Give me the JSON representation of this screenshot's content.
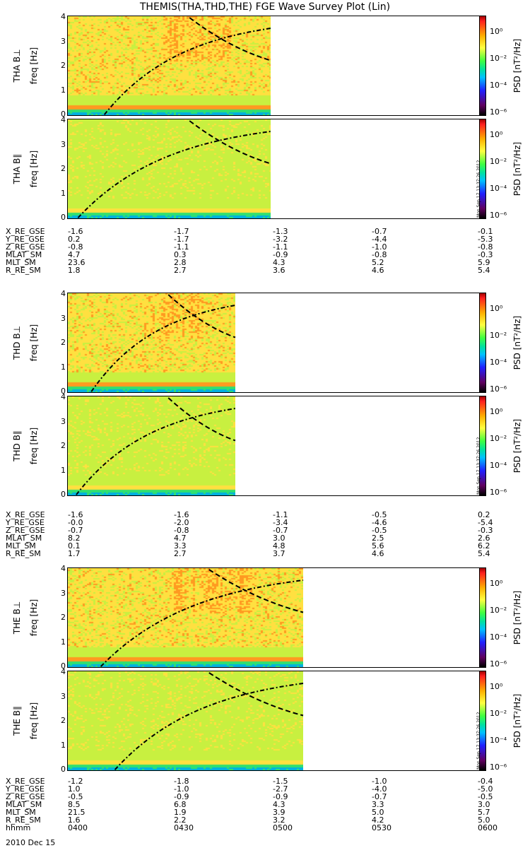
{
  "title": "THEMIS(THA,THD,THE) FGE Wave Survey Plot (Lin)",
  "freq_ticks": [
    "0",
    "1",
    "2",
    "3",
    "4"
  ],
  "colorbar": {
    "label": "PSD [nT²/Hz]",
    "ticks": [
      "10⁰",
      "10⁻²",
      "10⁻⁴",
      "10⁻⁶"
    ],
    "stamp": "Mon Sep 17 13:37:26 2012"
  },
  "probes": [
    {
      "name": "THA",
      "top_label": "THA B⊥",
      "bot_label": "THA B∥",
      "freq_label": "freq [Hz]",
      "data_end": 0.49,
      "ephemeris": [
        {
          "label": "X_RE_GSE",
          "values": [
            "-1.6",
            "-1.7",
            "-1.3",
            "-0.7",
            "-0.1"
          ]
        },
        {
          "label": "Y_RE_GSE",
          "values": [
            "0.2",
            "-1.7",
            "-3.2",
            "-4.4",
            "-5.3"
          ]
        },
        {
          "label": "Z_RE_GSE",
          "values": [
            "-0.8",
            "-1.1",
            "-1.1",
            "-1.0",
            "-0.8"
          ]
        },
        {
          "label": "MLAT_SM",
          "values": [
            "4.7",
            "0.3",
            "-0.9",
            "-0.8",
            "-0.3"
          ]
        },
        {
          "label": "MLT_SM",
          "values": [
            "23.6",
            "2.8",
            "4.3",
            "5.2",
            "5.9"
          ]
        },
        {
          "label": "R_RE_SM",
          "values": [
            "1.8",
            "2.7",
            "3.6",
            "4.6",
            "5.4"
          ]
        }
      ]
    },
    {
      "name": "THD",
      "top_label": "THD B⊥",
      "bot_label": "THD B∥",
      "freq_label": "freq [Hz]",
      "data_end": 0.405,
      "ephemeris": [
        {
          "label": "X_RE_GSE",
          "values": [
            "-1.6",
            "-1.6",
            "-1.1",
            "-0.5",
            "0.2"
          ]
        },
        {
          "label": "Y_RE_GSE",
          "values": [
            "-0.0",
            "-2.0",
            "-3.4",
            "-4.6",
            "-5.4"
          ]
        },
        {
          "label": "Z_RE_GSE",
          "values": [
            "-0.7",
            "-0.8",
            "-0.7",
            "-0.5",
            "-0.3"
          ]
        },
        {
          "label": "MLAT_SM",
          "values": [
            "8.2",
            "4.7",
            "3.0",
            "2.5",
            "2.6"
          ]
        },
        {
          "label": "MLT_SM",
          "values": [
            "0.1",
            "3.3",
            "4.8",
            "5.6",
            "6.2"
          ]
        },
        {
          "label": "R_RE_SM",
          "values": [
            "1.7",
            "2.7",
            "3.7",
            "4.6",
            "5.4"
          ]
        }
      ]
    },
    {
      "name": "THE",
      "top_label": "THE B⊥",
      "bot_label": "THE B∥",
      "freq_label": "freq [Hz]",
      "data_end": 0.57,
      "ephemeris": [
        {
          "label": "X_RE_GSE",
          "values": [
            "-1.2",
            "-1.8",
            "-1.5",
            "-1.0",
            "-0.4"
          ]
        },
        {
          "label": "Y_RE_GSE",
          "values": [
            "1.0",
            "-1.0",
            "-2.7",
            "-4.0",
            "-5.0"
          ]
        },
        {
          "label": "Z_RE_GSE",
          "values": [
            "-0.5",
            "-0.9",
            "-0.9",
            "-0.7",
            "-0.5"
          ]
        },
        {
          "label": "MLAT_SM",
          "values": [
            "8.5",
            "6.8",
            "4.3",
            "3.3",
            "3.0"
          ]
        },
        {
          "label": "MLT_SM",
          "values": [
            "21.5",
            "1.9",
            "3.9",
            "5.0",
            "5.7"
          ]
        },
        {
          "label": "R_RE_SM",
          "values": [
            "1.6",
            "2.2",
            "3.2",
            "4.2",
            "5.0"
          ]
        }
      ]
    }
  ],
  "time": {
    "label": "hhmm",
    "ticks": [
      "0400",
      "0430",
      "0500",
      "0530",
      "0600"
    ],
    "date": "2010 Dec 15"
  },
  "chart_data": {
    "type": "heatmap",
    "title": "THEMIS(THA,THD,THE) FGE Wave Survey Plot (Lin)",
    "ylabel": "freq [Hz]",
    "ylim": [
      0,
      4
    ],
    "x": [
      "0400",
      "0430",
      "0500",
      "0530",
      "0600"
    ],
    "colorbar_label": "PSD [nT²/Hz]",
    "colorbar_range": [
      "10⁻⁶",
      "10⁰"
    ],
    "panels": [
      {
        "name": "THA B⊥"
      },
      {
        "name": "THA B∥"
      },
      {
        "name": "THD B⊥"
      },
      {
        "name": "THD B∥"
      },
      {
        "name": "THE B⊥"
      },
      {
        "name": "THE B∥"
      }
    ]
  }
}
